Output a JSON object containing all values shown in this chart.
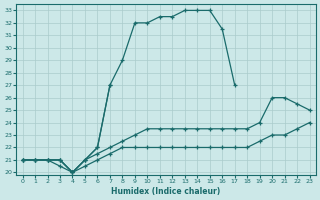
{
  "xlabel": "Humidex (Indice chaleur)",
  "ylabel": "",
  "background_color": "#cce8e8",
  "grid_color": "#aacccc",
  "line_color": "#1a6b6b",
  "xlim": [
    -0.5,
    23.5
  ],
  "ylim": [
    19.8,
    33.5
  ],
  "xticks": [
    0,
    1,
    2,
    3,
    4,
    5,
    6,
    7,
    8,
    9,
    10,
    11,
    12,
    13,
    14,
    15,
    16,
    17,
    18,
    19,
    20,
    21,
    22,
    23
  ],
  "yticks": [
    20,
    21,
    22,
    23,
    24,
    25,
    26,
    27,
    28,
    29,
    30,
    31,
    32,
    33
  ],
  "series": [
    {
      "x": [
        0,
        1,
        2,
        3,
        4,
        5,
        6,
        7,
        8,
        9,
        10,
        11,
        12,
        13,
        14,
        15,
        16,
        17
      ],
      "y": [
        21,
        21,
        21,
        21,
        20,
        21,
        22,
        27,
        29,
        32,
        32,
        32.5,
        32.5,
        33,
        33,
        33,
        31.5,
        27
      ]
    },
    {
      "x": [
        0,
        1,
        2,
        3,
        4,
        5,
        6,
        7
      ],
      "y": [
        21,
        21,
        21,
        21,
        20,
        21,
        22,
        27
      ]
    },
    {
      "x": [
        0,
        1,
        2,
        3,
        4,
        5,
        6,
        7,
        8,
        9,
        10,
        11,
        12,
        13,
        14,
        15,
        16,
        17,
        18,
        19,
        20,
        21,
        22,
        23
      ],
      "y": [
        21,
        21,
        21,
        21,
        20,
        21,
        21.5,
        22,
        22.5,
        23,
        23.5,
        23.5,
        23.5,
        23.5,
        23.5,
        23.5,
        23.5,
        23.5,
        23.5,
        24,
        26,
        26,
        25.5,
        25
      ]
    },
    {
      "x": [
        0,
        1,
        2,
        3,
        4,
        5,
        6,
        7,
        8,
        9,
        10,
        11,
        12,
        13,
        14,
        15,
        16,
        17,
        18,
        19,
        20,
        21,
        22,
        23
      ],
      "y": [
        21,
        21,
        21,
        20.5,
        20,
        20.5,
        21,
        21.5,
        22,
        22,
        22,
        22,
        22,
        22,
        22,
        22,
        22,
        22,
        22,
        22.5,
        23,
        23,
        23.5,
        24
      ]
    }
  ]
}
